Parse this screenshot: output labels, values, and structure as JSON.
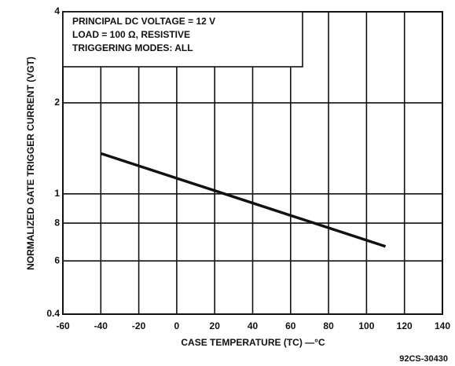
{
  "chart_data": {
    "type": "line",
    "ylabel": "NORMALIZED GATE TRIGGER CURRENT (VGT)",
    "xlabel": "CASE TEMPERATURE (TC) —°C",
    "annotations": [
      "PRINCIPAL DC VOLTAGE = 12 V",
      "LOAD = 100 Ω, RESISTIVE",
      "TRIGGERING MODES: ALL"
    ],
    "figure_id": "92CS-30430",
    "x": [
      -40,
      110
    ],
    "series": [
      {
        "name": null,
        "color": "#111111",
        "values": [
          1.36,
          0.67
        ]
      }
    ],
    "xlim": [
      -60,
      140
    ],
    "xticks": [
      -60,
      -40,
      -20,
      0,
      20,
      40,
      60,
      80,
      100,
      120,
      140
    ],
    "ylim": [
      0.4,
      4
    ],
    "ylog": true,
    "yticks": [
      0.4,
      {
        "value": 0.6,
        "label": "6"
      },
      {
        "value": 0.8,
        "label": "8"
      },
      1,
      2,
      4
    ],
    "grid": true
  }
}
